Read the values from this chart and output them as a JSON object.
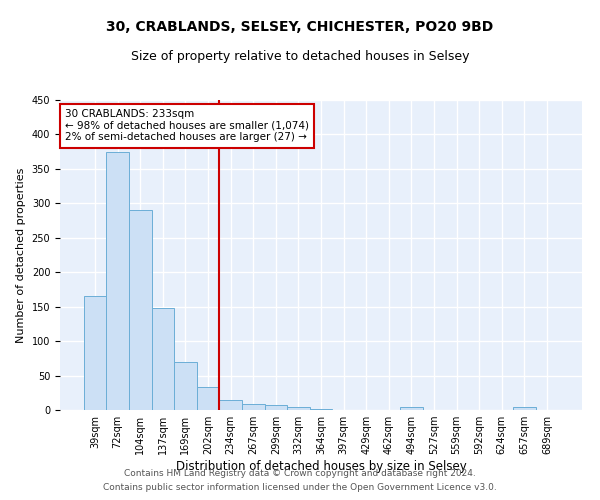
{
  "title": "30, CRABLANDS, SELSEY, CHICHESTER, PO20 9BD",
  "subtitle": "Size of property relative to detached houses in Selsey",
  "xlabel": "Distribution of detached houses by size in Selsey",
  "ylabel": "Number of detached properties",
  "footer1": "Contains HM Land Registry data © Crown copyright and database right 2024.",
  "footer2": "Contains public sector information licensed under the Open Government Licence v3.0.",
  "categories": [
    "39sqm",
    "72sqm",
    "104sqm",
    "137sqm",
    "169sqm",
    "202sqm",
    "234sqm",
    "267sqm",
    "299sqm",
    "332sqm",
    "364sqm",
    "397sqm",
    "429sqm",
    "462sqm",
    "494sqm",
    "527sqm",
    "559sqm",
    "592sqm",
    "624sqm",
    "657sqm",
    "689sqm"
  ],
  "values": [
    165,
    375,
    290,
    148,
    70,
    33,
    15,
    8,
    7,
    5,
    2,
    0,
    0,
    0,
    4,
    0,
    0,
    0,
    0,
    4,
    0
  ],
  "bar_color": "#cce0f5",
  "bar_edge_color": "#6baed6",
  "highlight_line_label": "30 CRABLANDS: 233sqm",
  "annotation_line1": "← 98% of detached houses are smaller (1,074)",
  "annotation_line2": "2% of semi-detached houses are larger (27) →",
  "annotation_box_color": "#ffffff",
  "annotation_box_edge_color": "#cc0000",
  "vline_color": "#cc0000",
  "vline_x": 5.5,
  "ylim": [
    0,
    450
  ],
  "yticks": [
    0,
    50,
    100,
    150,
    200,
    250,
    300,
    350,
    400,
    450
  ],
  "axes_background": "#e8f0fb",
  "grid_color": "#ffffff",
  "title_fontsize": 10,
  "subtitle_fontsize": 9,
  "xlabel_fontsize": 8.5,
  "ylabel_fontsize": 8,
  "tick_fontsize": 7,
  "footer_fontsize": 6.5,
  "annot_fontsize": 7.5
}
